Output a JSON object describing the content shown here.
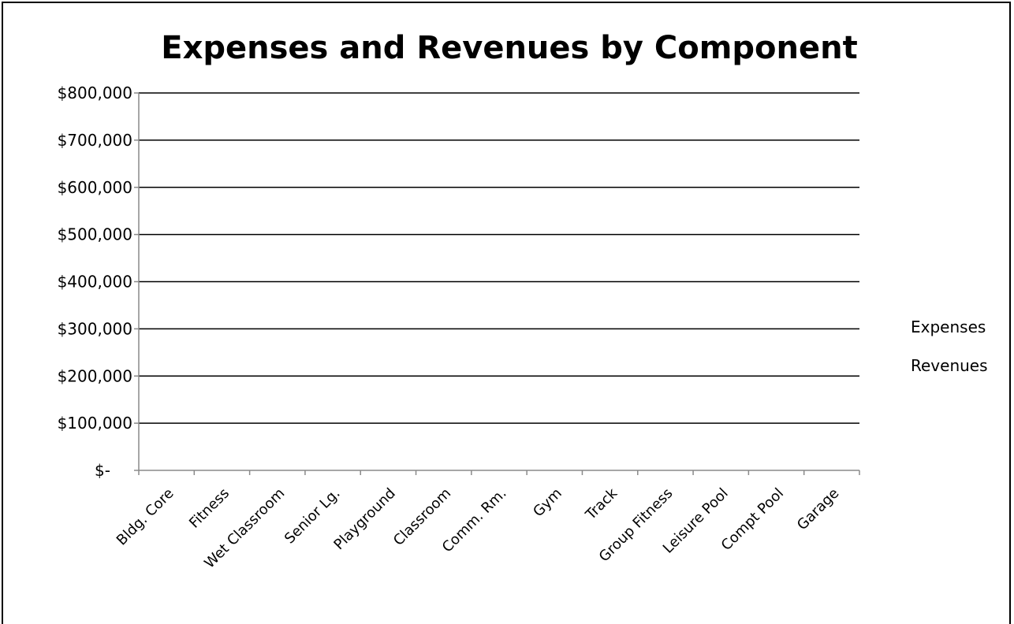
{
  "chart_data": {
    "type": "bar",
    "title": "Expenses and Revenues by Component",
    "xlabel": "",
    "ylabel": "",
    "ylim": [
      0,
      800000
    ],
    "y_ticks": [
      {
        "value": 0,
        "label": "$-"
      },
      {
        "value": 100000,
        "label": "$100,000"
      },
      {
        "value": 200000,
        "label": "$200,000"
      },
      {
        "value": 300000,
        "label": "$300,000"
      },
      {
        "value": 400000,
        "label": "$400,000"
      },
      {
        "value": 500000,
        "label": "$500,000"
      },
      {
        "value": 600000,
        "label": "$600,000"
      },
      {
        "value": 700000,
        "label": "$700,000"
      },
      {
        "value": 800000,
        "label": "$800,000"
      }
    ],
    "categories": [
      "Bldg. Core",
      "Fitness",
      "Wet Classroom",
      "Senior Lg.",
      "Playground",
      "Classroom",
      "Comm. Rm.",
      "Gym",
      "Track",
      "Group Fitness",
      "Leisure Pool",
      "Compt Pool",
      "Garage"
    ],
    "series": [
      {
        "name": "Expenses",
        "values": [
          0,
          0,
          0,
          0,
          0,
          0,
          0,
          0,
          0,
          0,
          0,
          0,
          0
        ]
      },
      {
        "name": "Revenues",
        "values": [
          0,
          0,
          0,
          0,
          0,
          0,
          0,
          0,
          0,
          0,
          0,
          0,
          0
        ]
      }
    ],
    "grid": true,
    "legend_position": "right"
  }
}
